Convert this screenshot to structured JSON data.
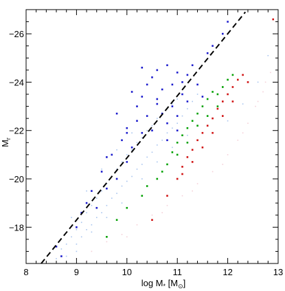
{
  "chart_data": {
    "type": "scatter",
    "title": "",
    "xlabel": "log M",
    "xlabel_sub": "*",
    "xlabel_unit_open": " [M",
    "xlabel_unit_symbol": "⊙",
    "xlabel_unit_close": "]",
    "ylabel": "M",
    "ylabel_sub": "r",
    "xlim": [
      8,
      13
    ],
    "ylim": [
      -16.5,
      -27
    ],
    "xticks": [
      {
        "value": 8,
        "label": "8"
      },
      {
        "value": 9,
        "label": "9"
      },
      {
        "value": 10,
        "label": "10"
      },
      {
        "value": 11,
        "label": "11"
      },
      {
        "value": 12,
        "label": "12"
      },
      {
        "value": 13,
        "label": "13"
      }
    ],
    "yticks": [
      {
        "value": -18,
        "label": "−18"
      },
      {
        "value": -20,
        "label": "−20"
      },
      {
        "value": -22,
        "label": "−22"
      },
      {
        "value": -24,
        "label": "−24"
      },
      {
        "value": -26,
        "label": "−26"
      }
    ],
    "grid": false,
    "legend": "none",
    "reference_line": {
      "style": "dashed",
      "color": "#000000",
      "x": [
        8.3,
        12.35
      ],
      "y": [
        -16.5,
        -26.9
      ]
    },
    "series": [
      {
        "color": "#f4d0d8",
        "marker": "tiny",
        "points": [
          [
            9.0,
            -16.7
          ],
          [
            9.3,
            -17.0
          ],
          [
            9.6,
            -17.4
          ],
          [
            9.9,
            -17.7
          ],
          [
            10.2,
            -18.1
          ],
          [
            10.5,
            -18.5
          ],
          [
            10.8,
            -18.9
          ],
          [
            11.1,
            -19.3
          ],
          [
            11.4,
            -19.8
          ],
          [
            11.7,
            -20.3
          ],
          [
            12.0,
            -21.0
          ],
          [
            12.2,
            -21.6
          ],
          [
            12.4,
            -22.3
          ],
          [
            12.55,
            -23.0
          ],
          [
            12.7,
            -23.6
          ],
          [
            12.85,
            -24.4
          ],
          [
            9.2,
            -16.6
          ],
          [
            10.0,
            -17.6
          ],
          [
            10.7,
            -18.6
          ],
          [
            11.3,
            -19.5
          ],
          [
            11.9,
            -20.6
          ],
          [
            12.3,
            -21.9
          ],
          [
            12.6,
            -23.2
          ],
          [
            12.75,
            -24.0
          ]
        ]
      },
      {
        "color": "#a8c4ee",
        "marker": "tiny",
        "points": [
          [
            8.6,
            -16.7
          ],
          [
            8.7,
            -17.1
          ],
          [
            8.8,
            -17.3
          ],
          [
            8.9,
            -17.6
          ],
          [
            9.0,
            -17.3
          ],
          [
            9.0,
            -17.9
          ],
          [
            9.1,
            -17.6
          ],
          [
            9.1,
            -18.2
          ],
          [
            9.2,
            -17.9
          ],
          [
            9.2,
            -18.6
          ],
          [
            9.3,
            -18.1
          ],
          [
            9.3,
            -18.9
          ],
          [
            9.4,
            -18.4
          ],
          [
            9.4,
            -19.2
          ],
          [
            9.5,
            -18.6
          ],
          [
            9.5,
            -19.5
          ],
          [
            9.6,
            -18.9
          ],
          [
            9.6,
            -19.8
          ],
          [
            9.7,
            -19.2
          ],
          [
            9.7,
            -20.1
          ],
          [
            9.8,
            -19.4
          ],
          [
            9.8,
            -20.4
          ],
          [
            9.9,
            -19.7
          ],
          [
            9.9,
            -20.7
          ],
          [
            10.0,
            -19.9
          ],
          [
            10.0,
            -21.0
          ],
          [
            10.1,
            -20.1
          ],
          [
            10.1,
            -21.2
          ],
          [
            10.2,
            -20.4
          ],
          [
            10.2,
            -21.5
          ],
          [
            10.3,
            -20.6
          ],
          [
            10.3,
            -21.7
          ],
          [
            10.4,
            -20.9
          ],
          [
            10.4,
            -22.0
          ],
          [
            10.5,
            -21.1
          ],
          [
            10.5,
            -22.2
          ],
          [
            10.6,
            -21.4
          ],
          [
            10.6,
            -22.5
          ],
          [
            10.7,
            -21.6
          ],
          [
            10.7,
            -22.7
          ],
          [
            10.8,
            -21.9
          ],
          [
            10.8,
            -22.9
          ],
          [
            10.9,
            -22.1
          ],
          [
            10.9,
            -23.1
          ],
          [
            11.0,
            -22.3
          ],
          [
            11.0,
            -23.3
          ],
          [
            11.1,
            -22.6
          ],
          [
            11.2,
            -22.9
          ],
          [
            11.3,
            -23.2
          ],
          [
            11.4,
            -23.5
          ],
          [
            9.5,
            -20.4
          ],
          [
            9.8,
            -21.2
          ],
          [
            10.1,
            -21.9
          ],
          [
            10.4,
            -22.6
          ],
          [
            9.2,
            -19.5
          ],
          [
            8.9,
            -18.4
          ],
          [
            10.6,
            -20.7
          ],
          [
            10.9,
            -21.3
          ],
          [
            11.2,
            -21.8
          ],
          [
            10.3,
            -20.0
          ],
          [
            9.9,
            -19.0
          ],
          [
            9.6,
            -18.4
          ],
          [
            9.3,
            -17.8
          ],
          [
            9.0,
            -17.0
          ],
          [
            8.8,
            -16.8
          ],
          [
            12.0,
            -22.4
          ],
          [
            12.3,
            -23.1
          ],
          [
            12.6,
            -24.0
          ],
          [
            12.8,
            -25.1
          ]
        ]
      },
      {
        "color": "#1a1acc",
        "marker": "dot",
        "points": [
          [
            8.6,
            -17.2
          ],
          [
            8.7,
            -16.8
          ],
          [
            9.0,
            -18.0
          ],
          [
            9.1,
            -18.6
          ],
          [
            9.3,
            -19.5
          ],
          [
            9.4,
            -18.8
          ],
          [
            9.5,
            -20.3
          ],
          [
            9.6,
            -19.6
          ],
          [
            9.7,
            -21.0
          ],
          [
            9.8,
            -20.0
          ],
          [
            9.9,
            -21.6
          ],
          [
            10.0,
            -20.7
          ],
          [
            10.0,
            -22.1
          ],
          [
            10.1,
            -21.3
          ],
          [
            10.2,
            -22.4
          ],
          [
            10.2,
            -23.0
          ],
          [
            10.3,
            -21.9
          ],
          [
            10.3,
            -23.4
          ],
          [
            10.4,
            -22.6
          ],
          [
            10.4,
            -23.9
          ],
          [
            10.5,
            -22.0
          ],
          [
            10.5,
            -24.2
          ],
          [
            10.6,
            -23.1
          ],
          [
            10.6,
            -24.5
          ],
          [
            10.7,
            -22.7
          ],
          [
            10.7,
            -23.7
          ],
          [
            10.8,
            -22.3
          ],
          [
            10.8,
            -24.7
          ],
          [
            10.9,
            -23.0
          ],
          [
            10.9,
            -23.9
          ],
          [
            11.0,
            -22.6
          ],
          [
            11.0,
            -24.4
          ],
          [
            11.1,
            -23.5
          ],
          [
            11.1,
            -24.0
          ],
          [
            11.2,
            -23.2
          ],
          [
            11.3,
            -24.7
          ],
          [
            11.4,
            -23.9
          ],
          [
            11.6,
            -25.2
          ],
          [
            11.7,
            -25.5
          ],
          [
            11.9,
            -26.0
          ],
          [
            12.0,
            -26.5
          ],
          [
            9.8,
            -22.7
          ],
          [
            10.1,
            -23.6
          ],
          [
            10.3,
            -24.6
          ],
          [
            9.6,
            -20.9
          ],
          [
            10.0,
            -21.9
          ],
          [
            10.6,
            -23.3
          ],
          [
            11.2,
            -24.3
          ],
          [
            9.2,
            -19.0
          ],
          [
            10.8,
            -21.6
          ],
          [
            11.0,
            -22.0
          ],
          [
            11.5,
            -23.4
          ]
        ]
      },
      {
        "color": "#00a000",
        "marker": "dot",
        "points": [
          [
            9.6,
            -17.6
          ],
          [
            9.8,
            -18.3
          ],
          [
            10.0,
            -18.8
          ],
          [
            10.3,
            -19.3
          ],
          [
            10.6,
            -20.0
          ],
          [
            10.8,
            -20.6
          ],
          [
            10.9,
            -21.1
          ],
          [
            11.0,
            -21.5
          ],
          [
            11.1,
            -21.8
          ],
          [
            11.2,
            -22.1
          ],
          [
            11.3,
            -22.4
          ],
          [
            11.4,
            -22.7
          ],
          [
            11.5,
            -23.0
          ],
          [
            11.6,
            -23.3
          ],
          [
            11.7,
            -23.6
          ],
          [
            11.8,
            -23.5
          ],
          [
            11.9,
            -23.8
          ],
          [
            12.0,
            -24.1
          ],
          [
            11.2,
            -21.5
          ],
          [
            11.4,
            -22.2
          ],
          [
            11.6,
            -22.6
          ],
          [
            11.0,
            -21.0
          ],
          [
            10.7,
            -20.3
          ],
          [
            10.4,
            -19.7
          ],
          [
            11.8,
            -23.0
          ],
          [
            12.1,
            -24.3
          ]
        ]
      },
      {
        "color": "#d01010",
        "marker": "dot",
        "points": [
          [
            10.5,
            -18.3
          ],
          [
            10.8,
            -19.3
          ],
          [
            11.0,
            -20.0
          ],
          [
            11.1,
            -20.5
          ],
          [
            11.2,
            -20.9
          ],
          [
            11.3,
            -21.2
          ],
          [
            11.4,
            -21.6
          ],
          [
            11.5,
            -21.9
          ],
          [
            11.6,
            -22.2
          ],
          [
            11.7,
            -22.5
          ],
          [
            11.8,
            -22.9
          ],
          [
            11.9,
            -23.2
          ],
          [
            12.0,
            -23.5
          ],
          [
            12.1,
            -23.8
          ],
          [
            12.2,
            -24.1
          ],
          [
            12.3,
            -24.3
          ],
          [
            11.5,
            -21.3
          ],
          [
            11.7,
            -21.9
          ],
          [
            11.9,
            -22.6
          ],
          [
            12.1,
            -23.2
          ],
          [
            12.4,
            -24.0
          ],
          [
            11.3,
            -20.7
          ],
          [
            11.1,
            -20.2
          ],
          [
            12.9,
            -26.6
          ]
        ]
      }
    ]
  }
}
